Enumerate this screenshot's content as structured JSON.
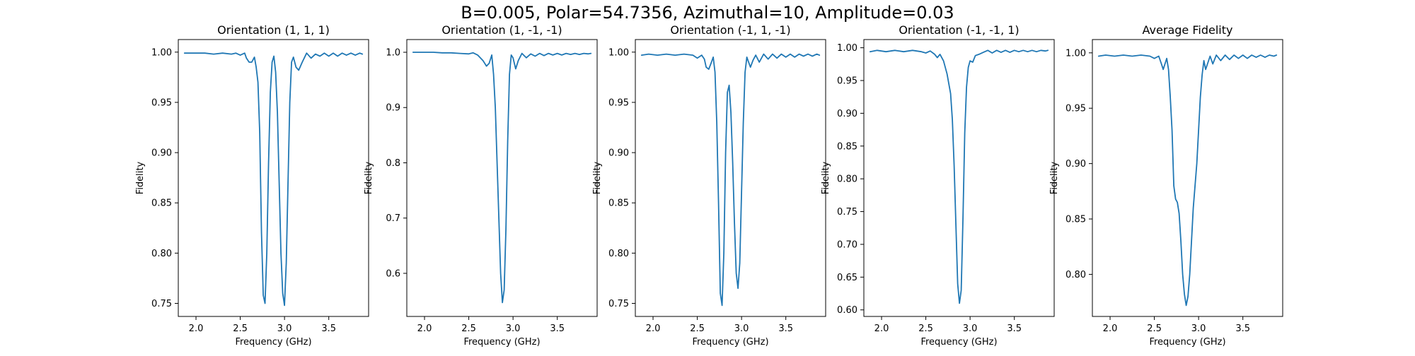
{
  "figure_title": "B=0.005, Polar=54.7356, Azimuthal=10, Amplitude=0.03",
  "colors": {
    "line": "#1f77b4",
    "axes": "#000000",
    "background": "#ffffff"
  },
  "chart_data": [
    {
      "type": "line",
      "title": "Orientation (1, 1, 1)",
      "xlabel": "Frequency (GHz)",
      "ylabel": "Fidelity",
      "xlim": [
        1.8,
        3.95
      ],
      "ylim": [
        0.737,
        1.0125
      ],
      "xticks": [
        2.0,
        2.5,
        3.0,
        3.5
      ],
      "xtick_labels": [
        "2.0",
        "2.5",
        "3.0",
        "3.5"
      ],
      "yticks": [
        0.75,
        0.8,
        0.85,
        0.9,
        0.95,
        1.0
      ],
      "ytick_labels": [
        "0.75",
        "0.80",
        "0.85",
        "0.90",
        "0.95",
        "1.00"
      ],
      "grid": false,
      "series": [
        {
          "x": [
            1.87,
            2.0,
            2.1,
            2.2,
            2.3,
            2.4,
            2.45,
            2.5,
            2.55,
            2.57,
            2.6,
            2.63,
            2.66,
            2.68,
            2.7,
            2.72,
            2.74,
            2.76,
            2.78,
            2.8,
            2.82,
            2.84,
            2.86,
            2.88,
            2.9,
            2.92,
            2.94,
            2.96,
            2.98,
            3.0,
            3.02,
            3.04,
            3.06,
            3.08,
            3.1,
            3.13,
            3.16,
            3.2,
            3.25,
            3.3,
            3.35,
            3.4,
            3.45,
            3.5,
            3.55,
            3.6,
            3.65,
            3.7,
            3.75,
            3.8,
            3.85,
            3.88
          ],
          "y": [
            0.999,
            0.999,
            0.999,
            0.998,
            0.999,
            0.998,
            0.999,
            0.997,
            0.999,
            0.994,
            0.99,
            0.99,
            0.995,
            0.985,
            0.97,
            0.92,
            0.82,
            0.758,
            0.75,
            0.8,
            0.89,
            0.96,
            0.99,
            0.996,
            0.98,
            0.94,
            0.87,
            0.8,
            0.76,
            0.748,
            0.79,
            0.87,
            0.95,
            0.99,
            0.995,
            0.985,
            0.982,
            0.99,
            0.999,
            0.994,
            0.998,
            0.996,
            0.999,
            0.996,
            0.999,
            0.996,
            0.999,
            0.997,
            0.999,
            0.997,
            0.999,
            0.998
          ]
        }
      ]
    },
    {
      "type": "line",
      "title": "Orientation (1, -1, -1)",
      "xlabel": "Frequency (GHz)",
      "ylabel": "Fidelity",
      "xlim": [
        1.8,
        3.95
      ],
      "ylim": [
        0.522,
        1.023
      ],
      "xticks": [
        2.0,
        2.5,
        3.0,
        3.5
      ],
      "xtick_labels": [
        "2.0",
        "2.5",
        "3.0",
        "3.5"
      ],
      "yticks": [
        0.6,
        0.7,
        0.8,
        0.9,
        1.0
      ],
      "ytick_labels": [
        "0.6",
        "0.7",
        "0.8",
        "0.9",
        "1.0"
      ],
      "grid": false,
      "series": [
        {
          "x": [
            1.87,
            2.0,
            2.1,
            2.2,
            2.3,
            2.4,
            2.5,
            2.55,
            2.6,
            2.63,
            2.66,
            2.7,
            2.73,
            2.76,
            2.78,
            2.8,
            2.82,
            2.84,
            2.86,
            2.88,
            2.9,
            2.92,
            2.94,
            2.96,
            2.98,
            3.0,
            3.03,
            3.06,
            3.1,
            3.15,
            3.2,
            3.25,
            3.3,
            3.35,
            3.4,
            3.45,
            3.5,
            3.55,
            3.6,
            3.65,
            3.7,
            3.75,
            3.8,
            3.85,
            3.88
          ],
          "y": [
            1.0,
            1.0,
            1.0,
            0.999,
            0.999,
            0.998,
            0.997,
            0.999,
            0.995,
            0.99,
            0.985,
            0.975,
            0.98,
            0.995,
            0.96,
            0.9,
            0.8,
            0.7,
            0.6,
            0.547,
            0.57,
            0.68,
            0.84,
            0.96,
            0.995,
            0.99,
            0.97,
            0.985,
            0.998,
            0.99,
            0.997,
            0.993,
            0.998,
            0.994,
            0.998,
            0.995,
            0.998,
            0.995,
            0.998,
            0.996,
            0.998,
            0.996,
            0.998,
            0.997,
            0.998
          ]
        }
      ]
    },
    {
      "type": "line",
      "title": "Orientation (-1, 1, -1)",
      "xlabel": "Frequency (GHz)",
      "ylabel": "Fidelity",
      "xlim": [
        1.8,
        3.95
      ],
      "ylim": [
        0.737,
        1.0125
      ],
      "xticks": [
        2.0,
        2.5,
        3.0,
        3.5
      ],
      "xtick_labels": [
        "2.0",
        "2.5",
        "3.0",
        "3.5"
      ],
      "yticks": [
        0.75,
        0.8,
        0.85,
        0.9,
        0.95,
        1.0
      ],
      "ytick_labels": [
        "0.75",
        "0.80",
        "0.85",
        "0.90",
        "0.95",
        "1.00"
      ],
      "grid": false,
      "series": [
        {
          "x": [
            1.87,
            1.95,
            2.05,
            2.15,
            2.25,
            2.35,
            2.45,
            2.5,
            2.55,
            2.58,
            2.6,
            2.63,
            2.66,
            2.68,
            2.7,
            2.72,
            2.74,
            2.76,
            2.78,
            2.8,
            2.82,
            2.84,
            2.86,
            2.88,
            2.9,
            2.92,
            2.94,
            2.96,
            2.98,
            3.0,
            3.02,
            3.04,
            3.06,
            3.08,
            3.1,
            3.13,
            3.16,
            3.2,
            3.25,
            3.3,
            3.35,
            3.4,
            3.45,
            3.5,
            3.55,
            3.6,
            3.65,
            3.7,
            3.75,
            3.8,
            3.85,
            3.88
          ],
          "y": [
            0.997,
            0.998,
            0.997,
            0.998,
            0.997,
            0.998,
            0.997,
            0.994,
            0.997,
            0.993,
            0.985,
            0.983,
            0.99,
            0.995,
            0.98,
            0.93,
            0.85,
            0.76,
            0.748,
            0.8,
            0.9,
            0.96,
            0.967,
            0.94,
            0.89,
            0.83,
            0.78,
            0.765,
            0.79,
            0.86,
            0.93,
            0.98,
            0.995,
            0.99,
            0.985,
            0.992,
            0.997,
            0.99,
            0.998,
            0.993,
            0.998,
            0.994,
            0.998,
            0.995,
            0.998,
            0.995,
            0.998,
            0.996,
            0.998,
            0.996,
            0.998,
            0.997
          ]
        }
      ]
    },
    {
      "type": "line",
      "title": "Orientation (-1, -1, 1)",
      "xlabel": "Frequency (GHz)",
      "ylabel": "Fidelity",
      "xlim": [
        1.8,
        3.95
      ],
      "ylim": [
        0.59,
        1.0125
      ],
      "xticks": [
        2.0,
        2.5,
        3.0,
        3.5
      ],
      "xtick_labels": [
        "2.0",
        "2.5",
        "3.0",
        "3.5"
      ],
      "yticks": [
        0.6,
        0.65,
        0.7,
        0.75,
        0.8,
        0.85,
        0.9,
        0.95,
        1.0
      ],
      "ytick_labels": [
        "0.60",
        "0.65",
        "0.70",
        "0.75",
        "0.80",
        "0.85",
        "0.90",
        "0.95",
        "1.00"
      ],
      "grid": false,
      "series": [
        {
          "x": [
            1.87,
            1.95,
            2.05,
            2.15,
            2.25,
            2.35,
            2.45,
            2.5,
            2.55,
            2.6,
            2.63,
            2.66,
            2.7,
            2.74,
            2.78,
            2.8,
            2.82,
            2.84,
            2.86,
            2.88,
            2.9,
            2.92,
            2.94,
            2.96,
            2.98,
            3.0,
            3.03,
            3.06,
            3.1,
            3.15,
            3.2,
            3.25,
            3.3,
            3.35,
            3.4,
            3.45,
            3.5,
            3.55,
            3.6,
            3.65,
            3.7,
            3.75,
            3.8,
            3.85,
            3.88
          ],
          "y": [
            0.994,
            0.996,
            0.994,
            0.996,
            0.994,
            0.996,
            0.994,
            0.992,
            0.995,
            0.99,
            0.985,
            0.99,
            0.98,
            0.96,
            0.93,
            0.89,
            0.82,
            0.73,
            0.64,
            0.61,
            0.63,
            0.74,
            0.87,
            0.94,
            0.97,
            0.98,
            0.978,
            0.988,
            0.99,
            0.993,
            0.996,
            0.992,
            0.996,
            0.993,
            0.996,
            0.993,
            0.996,
            0.994,
            0.996,
            0.994,
            0.996,
            0.994,
            0.996,
            0.995,
            0.996
          ]
        }
      ]
    },
    {
      "type": "line",
      "title": "Average Fidelity",
      "xlabel": "Frequency (GHz)",
      "ylabel": "Fidelity",
      "xlim": [
        1.8,
        3.95
      ],
      "ylim": [
        0.762,
        1.012
      ],
      "xticks": [
        2.0,
        2.5,
        3.0,
        3.5
      ],
      "xtick_labels": [
        "2.0",
        "2.5",
        "3.0",
        "3.5"
      ],
      "yticks": [
        0.8,
        0.85,
        0.9,
        0.95,
        1.0
      ],
      "ytick_labels": [
        "0.80",
        "0.85",
        "0.90",
        "0.95",
        "1.00"
      ],
      "grid": false,
      "series": [
        {
          "x": [
            1.87,
            1.95,
            2.05,
            2.15,
            2.25,
            2.35,
            2.45,
            2.5,
            2.55,
            2.58,
            2.6,
            2.62,
            2.64,
            2.66,
            2.68,
            2.7,
            2.72,
            2.74,
            2.76,
            2.78,
            2.8,
            2.82,
            2.84,
            2.86,
            2.88,
            2.9,
            2.92,
            2.94,
            2.96,
            2.98,
            3.0,
            3.02,
            3.04,
            3.06,
            3.08,
            3.1,
            3.13,
            3.16,
            3.2,
            3.25,
            3.3,
            3.35,
            3.4,
            3.45,
            3.5,
            3.55,
            3.6,
            3.65,
            3.7,
            3.75,
            3.8,
            3.85,
            3.88
          ],
          "y": [
            0.997,
            0.998,
            0.997,
            0.998,
            0.997,
            0.998,
            0.997,
            0.995,
            0.997,
            0.99,
            0.985,
            0.99,
            0.995,
            0.985,
            0.96,
            0.93,
            0.88,
            0.868,
            0.865,
            0.855,
            0.83,
            0.8,
            0.782,
            0.772,
            0.78,
            0.8,
            0.83,
            0.86,
            0.88,
            0.9,
            0.93,
            0.96,
            0.98,
            0.993,
            0.985,
            0.99,
            0.997,
            0.99,
            0.998,
            0.993,
            0.998,
            0.994,
            0.998,
            0.995,
            0.998,
            0.995,
            0.998,
            0.996,
            0.998,
            0.996,
            0.998,
            0.997,
            0.998
          ]
        }
      ]
    }
  ]
}
